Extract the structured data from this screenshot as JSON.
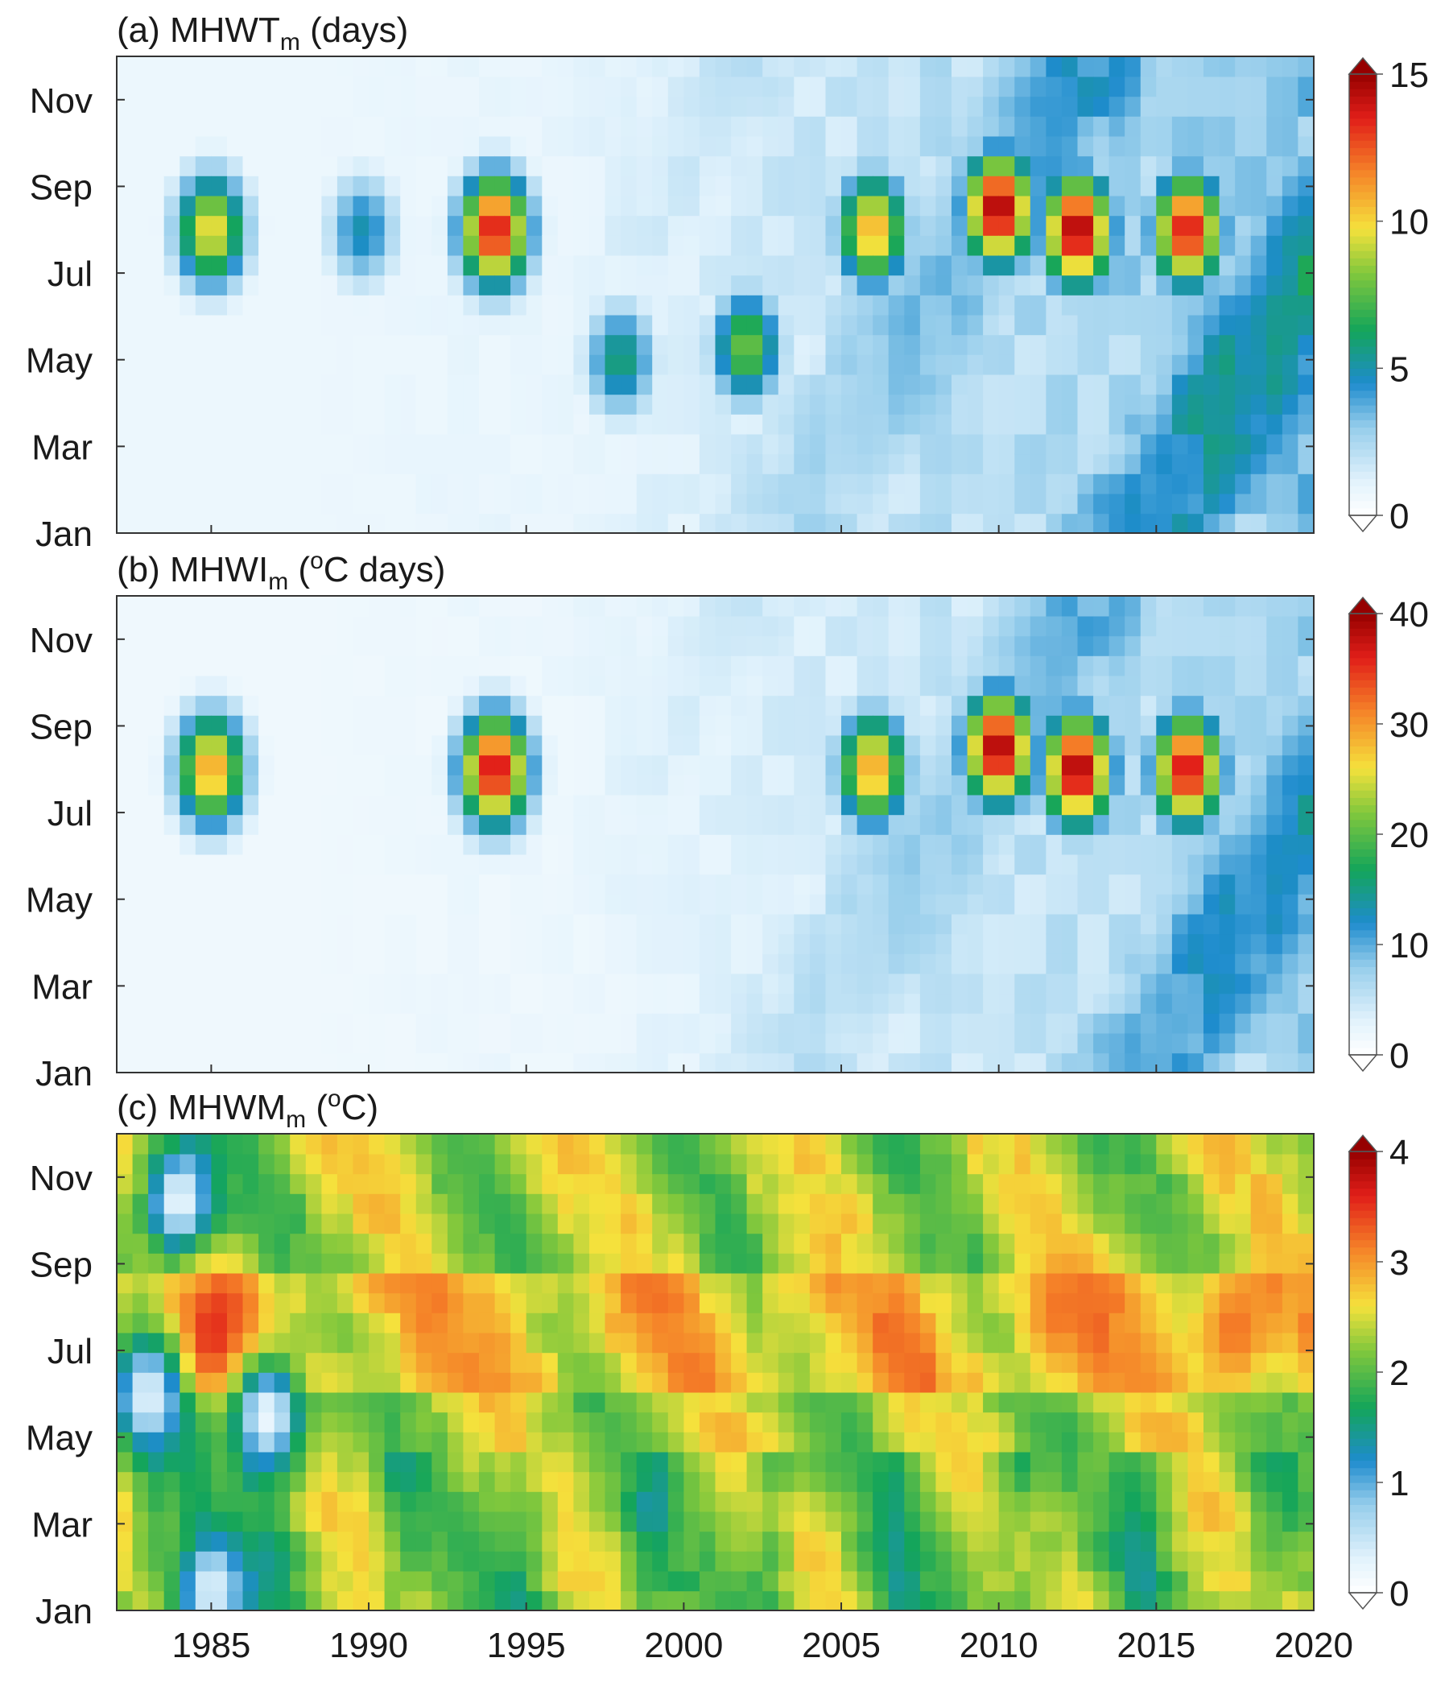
{
  "figure": {
    "panels": [
      {
        "id": "a",
        "title_prefix": "(a) MHWT",
        "title_sub": "m",
        "title_sup": "",
        "title_suffix": " (days)",
        "colorbar": {
          "min": 0,
          "max": 15,
          "ticks": [
            "0",
            "5",
            "10",
            "15"
          ]
        }
      },
      {
        "id": "b",
        "title_prefix": "(b) MHWI",
        "title_sub": "m",
        "title_sup": "o",
        "title_suffix": "C days)",
        "title_paren": " (",
        "colorbar": {
          "min": 0,
          "max": 40,
          "ticks": [
            "0",
            "10",
            "20",
            "30",
            "40"
          ]
        }
      },
      {
        "id": "c",
        "title_prefix": "(c) MHWM",
        "title_sub": "m",
        "title_sup": "o",
        "title_suffix": "C)",
        "title_paren": " (",
        "colorbar": {
          "min": 0,
          "max": 4,
          "ticks": [
            "0",
            "1",
            "2",
            "3",
            "4"
          ]
        }
      }
    ],
    "y_ticks": [
      "Jan",
      "Mar",
      "May",
      "Jul",
      "Sep",
      "Nov"
    ],
    "x_ticks": [
      "1985",
      "1990",
      "1995",
      "2000",
      "2005",
      "2010",
      "2015",
      "2020"
    ]
  },
  "chart_data": [
    {
      "type": "heatmap",
      "title": "(a) MHWT_m (days)",
      "x_range": [
        1982,
        2020
      ],
      "y_range": [
        "Jan",
        "Dec"
      ],
      "value_range": [
        0,
        15
      ],
      "colormap": [
        "#ffffff",
        "#cfe8f7",
        "#3a9bd5",
        "#1bb24a",
        "#f2e33a",
        "#f06a1c",
        "#b80000"
      ],
      "hotspots": [
        {
          "year": 1985,
          "month": 8,
          "value": 10
        },
        {
          "year": 1989.8,
          "month": 8,
          "value": 5
        },
        {
          "year": 1994,
          "month": 8,
          "value": 14
        },
        {
          "year": 1998,
          "month": 5,
          "value": 6
        },
        {
          "year": 2002,
          "month": 5.3,
          "value": 8
        },
        {
          "year": 2006,
          "month": 8,
          "value": 11
        },
        {
          "year": 2010,
          "month": 8.5,
          "value": 15
        },
        {
          "year": 2012.5,
          "month": 8,
          "value": 15
        },
        {
          "year": 2016,
          "month": 8,
          "value": 14
        }
      ]
    },
    {
      "type": "heatmap",
      "title": "(b) MHWI_m (oC days)",
      "x_range": [
        1982,
        2020
      ],
      "y_range": [
        "Jan",
        "Dec"
      ],
      "value_range": [
        0,
        40
      ],
      "colormap": [
        "#ffffff",
        "#cfe8f7",
        "#3a9bd5",
        "#1bb24a",
        "#f2e33a",
        "#f06a1c",
        "#b80000"
      ],
      "hotspots": [
        {
          "year": 1985,
          "month": 8,
          "value": 30
        },
        {
          "year": 1994,
          "month": 8,
          "value": 38
        },
        {
          "year": 2006,
          "month": 8,
          "value": 30
        },
        {
          "year": 2010,
          "month": 8.5,
          "value": 40
        },
        {
          "year": 2012.5,
          "month": 8,
          "value": 40
        },
        {
          "year": 2016,
          "month": 8,
          "value": 38
        }
      ]
    },
    {
      "type": "heatmap",
      "title": "(c) MHWM_m (oC)",
      "x_range": [
        1982,
        2020
      ],
      "y_range": [
        "Jan",
        "Dec"
      ],
      "value_range": [
        0,
        4
      ],
      "colormap": [
        "#ffffff",
        "#cfe8f7",
        "#3a9bd5",
        "#1bb24a",
        "#f2e33a",
        "#f06a1c",
        "#b80000"
      ],
      "hotspots": [
        {
          "year": 1985,
          "month": 7.3,
          "value": 3.6
        },
        {
          "year": 1984,
          "month": 10.5,
          "value": 0.2
        },
        {
          "year": 1986.8,
          "month": 5.5,
          "value": 0.2
        },
        {
          "year": 1983,
          "month": 6,
          "value": 0.3
        },
        {
          "year": 1985,
          "month": 1.5,
          "value": 0.3
        },
        {
          "year": 2012,
          "month": 8,
          "value": 3.2
        },
        {
          "year": 2017.5,
          "month": 7.5,
          "value": 3.2
        }
      ]
    }
  ]
}
